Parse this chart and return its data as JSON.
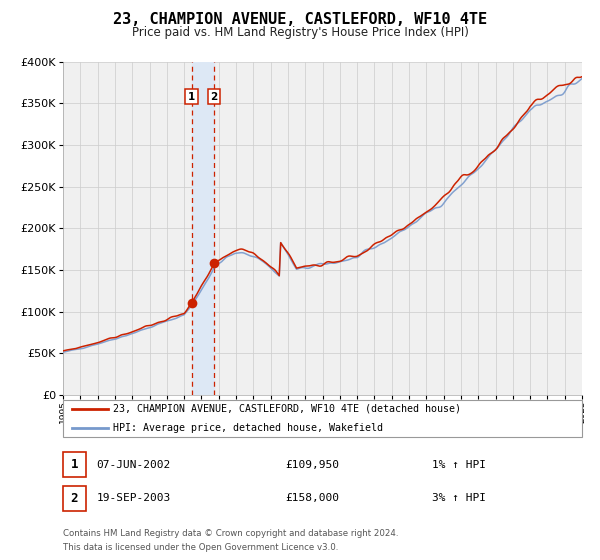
{
  "title": "23, CHAMPION AVENUE, CASTLEFORD, WF10 4TE",
  "subtitle": "Price paid vs. HM Land Registry's House Price Index (HPI)",
  "ylim": [
    0,
    400000
  ],
  "yticks": [
    0,
    50000,
    100000,
    150000,
    200000,
    250000,
    300000,
    350000,
    400000
  ],
  "x_start_year": 1995,
  "x_end_year": 2025,
  "sale1_date": 2002.44,
  "sale1_price": 109950,
  "sale1_label": "1",
  "sale1_text": "07-JUN-2002",
  "sale1_amount": "£109,950",
  "sale1_hpi": "1% ↑ HPI",
  "sale2_date": 2003.72,
  "sale2_price": 158000,
  "sale2_label": "2",
  "sale2_text": "19-SEP-2003",
  "sale2_amount": "£158,000",
  "sale2_hpi": "3% ↑ HPI",
  "hpi_line_color": "#7799cc",
  "price_line_color": "#cc2200",
  "point_color": "#cc2200",
  "shading_color": "#dde8f5",
  "grid_color": "#cccccc",
  "bg_color": "#f0f0f0",
  "legend1_label": "23, CHAMPION AVENUE, CASTLEFORD, WF10 4TE (detached house)",
  "legend2_label": "HPI: Average price, detached house, Wakefield",
  "footer_line1": "Contains HM Land Registry data © Crown copyright and database right 2024.",
  "footer_line2": "This data is licensed under the Open Government Licence v3.0."
}
